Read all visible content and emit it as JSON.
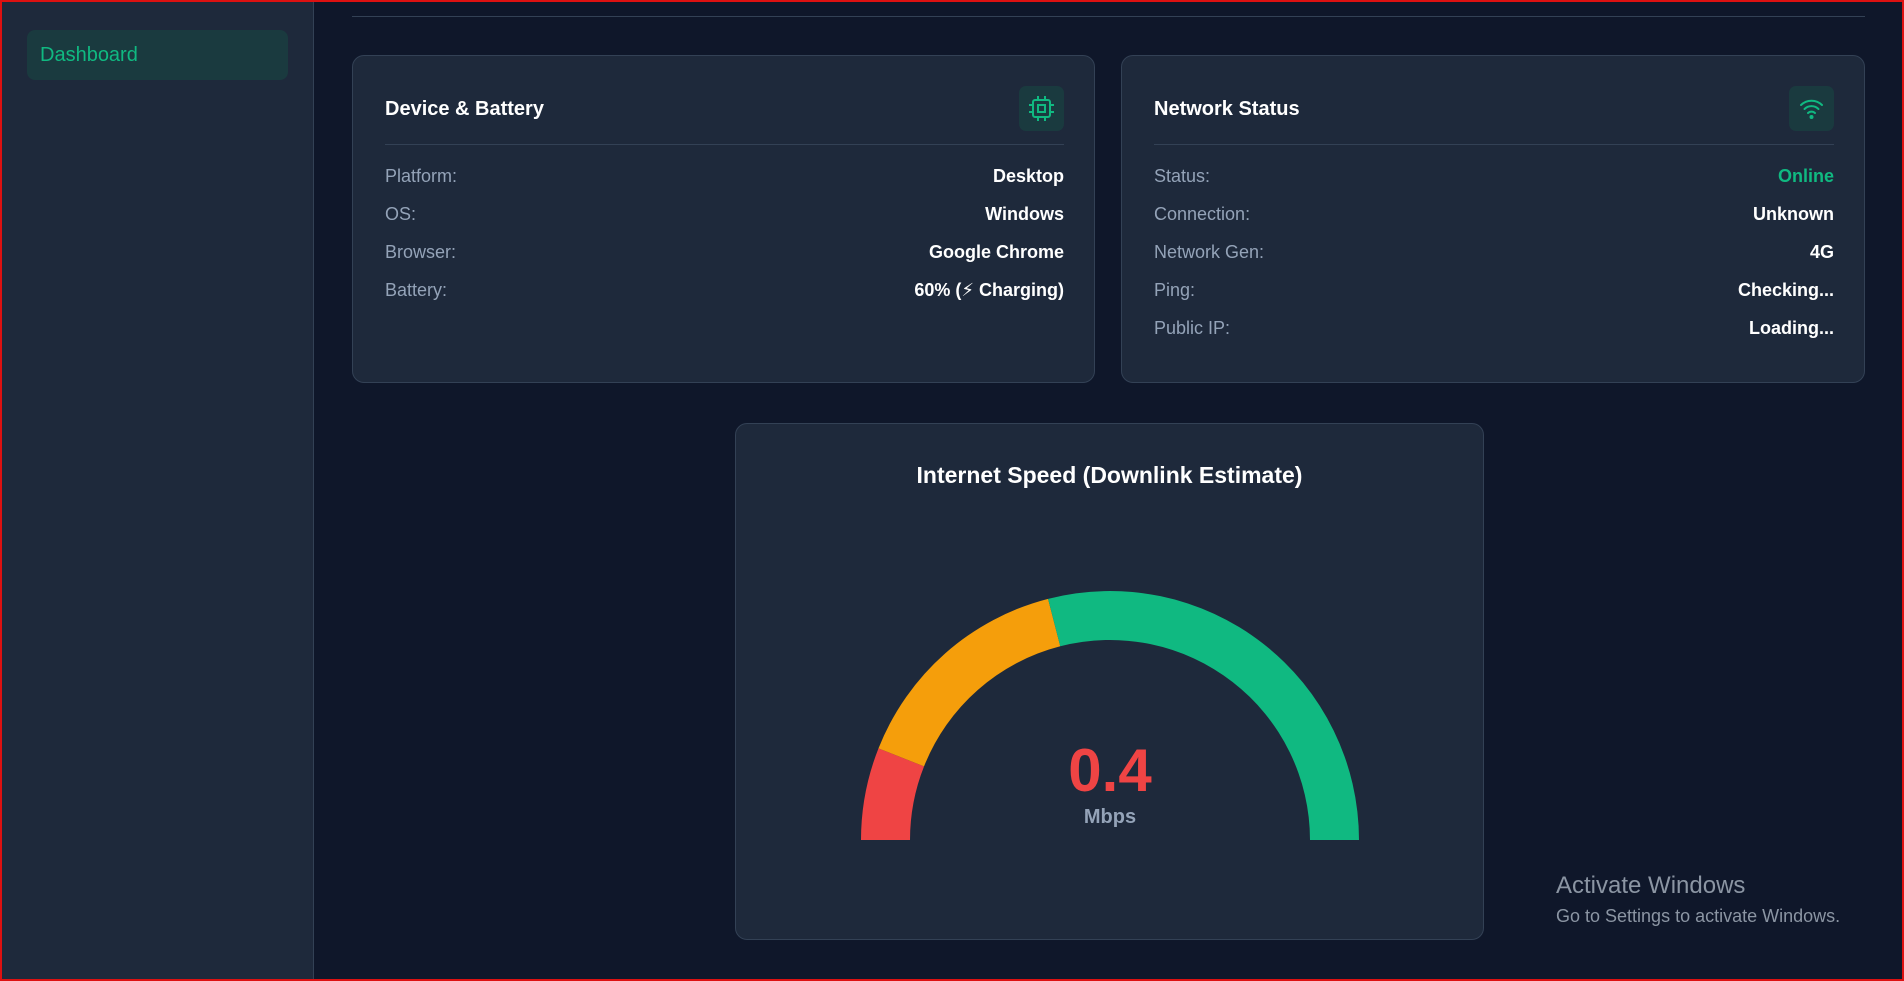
{
  "sidebar": {
    "nav": [
      "Dashboard"
    ]
  },
  "cards": [
    {
      "title": "Device & Battery",
      "rows": [
        {
          "label": "Platform:",
          "value": "Desktop"
        },
        {
          "label": "OS:",
          "value": "Windows"
        },
        {
          "label": "Browser:",
          "value": "Google Chrome"
        },
        {
          "label": "Battery:",
          "value": "60% (⚡ Charging)"
        }
      ]
    },
    {
      "title": "Network Status",
      "rows": [
        {
          "label": "Status:",
          "value": "Online"
        },
        {
          "label": "Connection:",
          "value": "Unknown"
        },
        {
          "label": "Network Gen:",
          "value": "4G"
        },
        {
          "label": "Ping:",
          "value": "Checking..."
        },
        {
          "label": "Public IP:",
          "value": "Loading..."
        }
      ]
    }
  ],
  "speed": {
    "title": "Internet Speed (Downlink Estimate)",
    "value": 0.4,
    "unit": "Mbps",
    "gauge_segments": [
      12,
      30,
      58
    ],
    "gauge_colors": [
      "#ef4444",
      "#f59e0b",
      "#10b981"
    ]
  },
  "watermark": {
    "title": "Activate Windows",
    "text": "Go to Settings to activate Windows."
  }
}
